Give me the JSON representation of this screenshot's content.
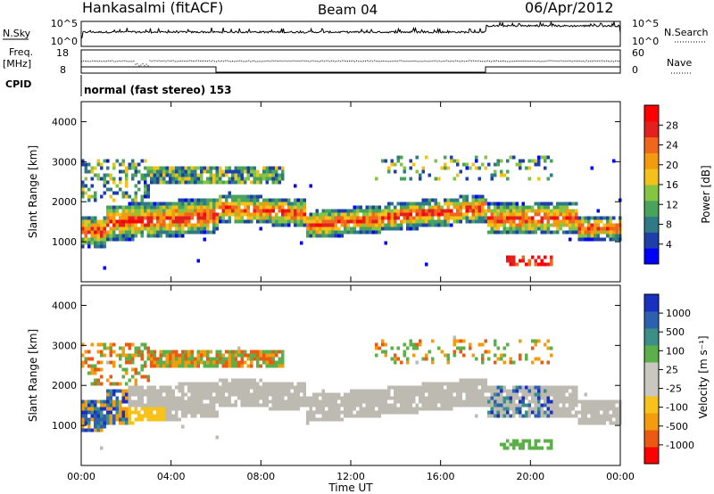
{
  "header": {
    "station": "Hankasalmi (fitACF)",
    "beam": "Beam 04",
    "date": "06/Apr/2012"
  },
  "top_panels": {
    "nsky_label": "N.Sky",
    "nsky_ticks": [
      "10^5",
      "10^0"
    ],
    "nsearch_label": "N.Search",
    "nsearch_ticks": [
      "10^5",
      "10^0"
    ],
    "freq_label_line1": "Freq.",
    "freq_label_line2": "[MHz]",
    "freq_ticks": [
      "18",
      "8"
    ],
    "nave_label": "Nave",
    "nave_ticks": [
      "60",
      "0"
    ],
    "cpid_label": "CPID",
    "cpid_text": "normal (fast stereo) 153"
  },
  "colors": {
    "power_scale": [
      "#0000ff",
      "#1e3ea8",
      "#2f7a86",
      "#4aa35c",
      "#86c443",
      "#f2c21b",
      "#f39b0f",
      "#f0661c",
      "#e3201e",
      "#ff0000"
    ],
    "velocity_scale": [
      "#1a30c0",
      "#2c61b0",
      "#3c8f86",
      "#5bb049",
      "#c9c7bf",
      "#c9c7bf",
      "#f7c21a",
      "#f39c0e",
      "#ea5a12",
      "#ff0000"
    ],
    "ground_scatter": "#bdbab2"
  },
  "chart_data": [
    {
      "type": "heatmap",
      "name": "power",
      "ylabel": "Slant Range [km]",
      "y_ticks": [
        "1000",
        "2000",
        "3000",
        "4000"
      ],
      "x_ticks": [
        "00:00",
        "04:00",
        "08:00",
        "12:00",
        "16:00",
        "20:00",
        "00:00"
      ],
      "ylim": [
        0,
        4500
      ],
      "colorbar_label": "Power [dB]",
      "colorbar_ticks": [
        "4",
        "8",
        "12",
        "16",
        "20",
        "24",
        "28"
      ],
      "colorbar_range": [
        0,
        30
      ]
    },
    {
      "type": "heatmap",
      "name": "velocity",
      "ylabel": "Slant Range [km]",
      "y_ticks": [
        "1000",
        "2000",
        "3000",
        "4000"
      ],
      "x_ticks": [
        "00:00",
        "04:00",
        "08:00",
        "12:00",
        "16:00",
        "20:00",
        "00:00"
      ],
      "xlabel": "Time UT",
      "ylim": [
        0,
        4500
      ],
      "colorbar_label": "Velocity [m s⁻¹]",
      "colorbar_ticks": [
        "1000",
        "500",
        "100",
        "25",
        "-25",
        "-100",
        "-500",
        "-1000"
      ]
    }
  ]
}
